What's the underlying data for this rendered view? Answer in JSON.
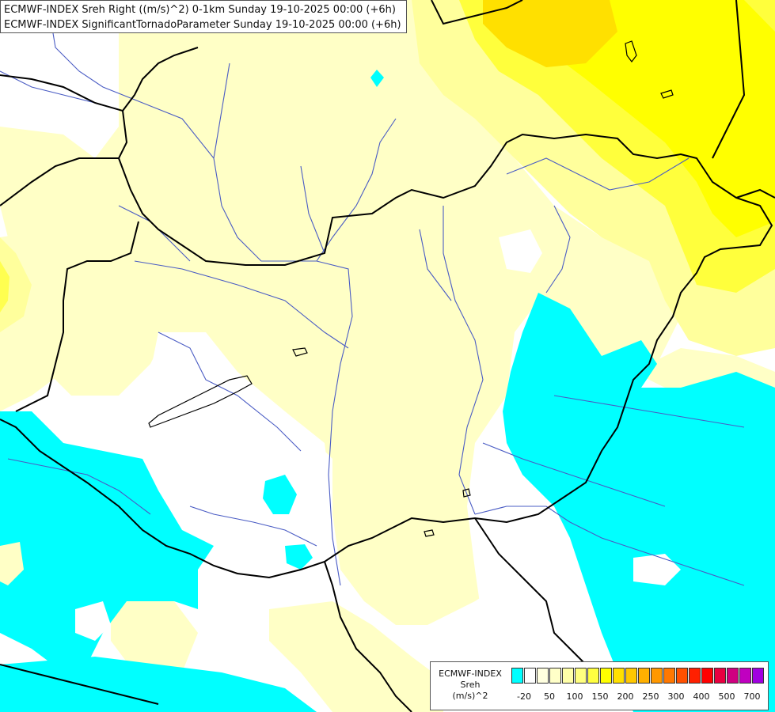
{
  "title": {
    "line1": "ECMWF-INDEX Sreh Right ((m/s)^2) 0-1km Sunday 19-10-2025 00:00 (+6h)",
    "line2": "ECMWF-INDEX SignificantTornadoParameter Sunday 19-10-2025 00:00 (+6h)"
  },
  "legend": {
    "name": "ECMWF-INDEX",
    "variable": "Sreh",
    "unit": "(m/s)^2",
    "colors": [
      "#00ffff",
      "#ffffff",
      "#ffffe0",
      "#ffffc8",
      "#ffffa8",
      "#ffff80",
      "#ffff40",
      "#ffff00",
      "#ffe000",
      "#ffc800",
      "#ffb000",
      "#ff9800",
      "#ff7800",
      "#ff5000",
      "#ff2000",
      "#ff0000",
      "#e80040",
      "#d00080",
      "#c000c0",
      "#a000e0",
      "#8000e0",
      "#6000c0",
      "#4000a0",
      "#200080"
    ],
    "ticks": [
      {
        "label": "-20",
        "at": 1
      },
      {
        "label": "50",
        "at": 3
      },
      {
        "label": "100",
        "at": 5
      },
      {
        "label": "150",
        "at": 7
      },
      {
        "label": "200",
        "at": 9
      },
      {
        "label": "250",
        "at": 11
      },
      {
        "label": "300",
        "at": 13
      },
      {
        "label": "400",
        "at": 15
      },
      {
        "label": "500",
        "at": 17
      },
      {
        "label": "700",
        "at": 19
      }
    ]
  },
  "map_colors": {
    "low_negative": "#00ffff",
    "neutral": "#ffffff",
    "pale_yellow": "#ffffc0",
    "light_yellow": "#ffff9a",
    "yellow": "#ffff40",
    "bright_yellow": "#ffff00",
    "gold": "#ffe000",
    "border": "#000000",
    "river": "#4a5cc4"
  }
}
